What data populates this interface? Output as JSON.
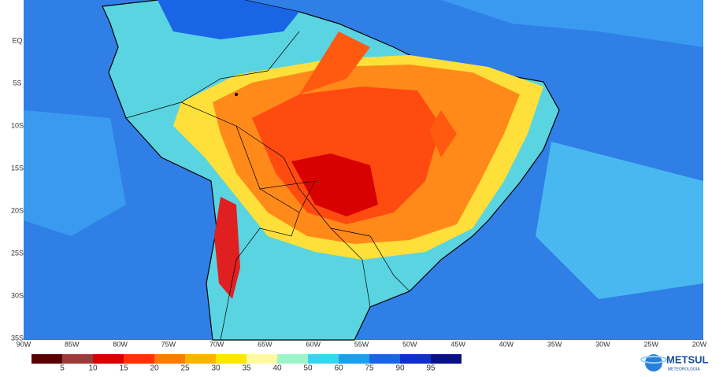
{
  "map": {
    "lat_labels": [
      "EQ",
      "5S",
      "10S",
      "15S",
      "20S",
      "25S",
      "30S",
      "35S"
    ],
    "lon_labels": [
      "90W",
      "85W",
      "80W",
      "75W",
      "70W",
      "65W",
      "60W",
      "55W",
      "50W",
      "45W",
      "40W",
      "35W",
      "30W",
      "25W",
      "20W"
    ]
  },
  "colorbar": {
    "labels": [
      5,
      10,
      15,
      20,
      25,
      30,
      35,
      40,
      50,
      60,
      75,
      90,
      95
    ],
    "colors": [
      "#5a0000",
      "#a03a3a",
      "#d80000",
      "#ff3300",
      "#ff7a00",
      "#ffb300",
      "#ffe600",
      "#fffaa0",
      "#9cf5c8",
      "#36d6f0",
      "#1aa0f0",
      "#1a64e6",
      "#1030c8",
      "#08108c"
    ]
  },
  "logo": {
    "name": "METSUL",
    "tagline": "METEOROLOGIA"
  }
}
